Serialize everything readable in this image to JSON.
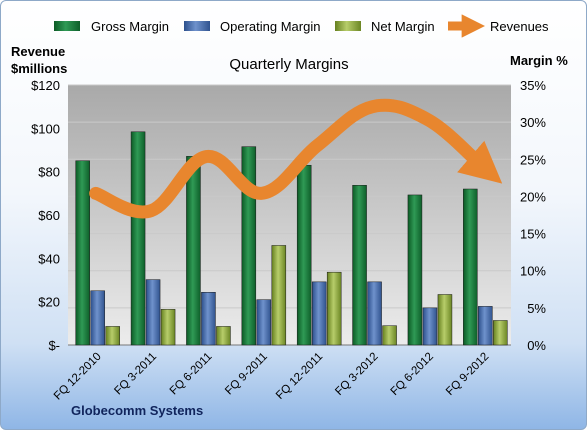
{
  "chart_data": {
    "type": "bar",
    "title": "Quarterly Margins",
    "company": "Globecomm Systems",
    "y_left_label_line1": "Revenue",
    "y_left_label_line2": "$millions",
    "y_right_label": "Margin %",
    "y_left_ticks": [
      "$-",
      "$20",
      "$40",
      "$60",
      "$80",
      "$100",
      "$120"
    ],
    "y_right_ticks": [
      "0%",
      "5%",
      "10%",
      "15%",
      "20%",
      "25%",
      "30%",
      "35%"
    ],
    "y_left_range": [
      0,
      120
    ],
    "y_right_range": [
      0,
      35
    ],
    "categories": [
      "FQ 12-2010",
      "FQ 3-2011",
      "FQ 6-2011",
      "FQ 9-2011",
      "FQ 12-2011",
      "FQ 3-2012",
      "FQ 6-2012",
      "FQ 9-2012"
    ],
    "series": [
      {
        "name": "Gross Margin",
        "axis": "right",
        "color": "#1e7c3e",
        "values": [
          24.8,
          28.7,
          25.4,
          26.7,
          24.2,
          21.5,
          20.2,
          21.0
        ]
      },
      {
        "name": "Operating Margin",
        "axis": "right",
        "color": "#4a6fae",
        "values": [
          7.3,
          8.8,
          7.1,
          6.1,
          8.5,
          8.5,
          5.0,
          5.2
        ]
      },
      {
        "name": "Net Margin",
        "axis": "right",
        "color": "#8fa83e",
        "values": [
          2.5,
          4.8,
          2.5,
          13.4,
          9.8,
          2.6,
          6.8,
          3.3
        ]
      },
      {
        "name": "Revenues",
        "axis": "left",
        "type": "line",
        "color": "#e8862e",
        "values": [
          70,
          62,
          87,
          70,
          92,
          110,
          104,
          82
        ]
      }
    ],
    "legend_position": "top",
    "grid": true
  }
}
